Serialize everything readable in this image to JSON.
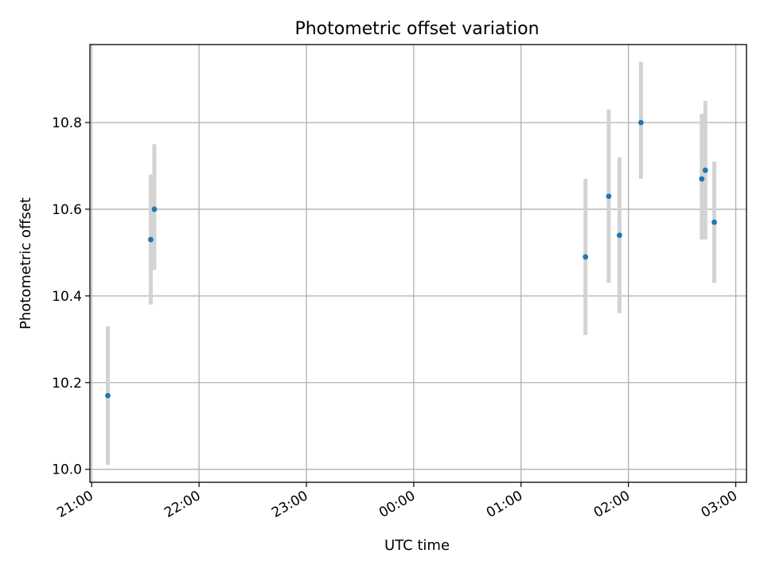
{
  "chart_data": {
    "type": "scatter",
    "title": "Photometric offset variation",
    "xlabel": "UTC time",
    "ylabel": "Photometric offset",
    "x_axis_kind": "time",
    "xlim": [
      "20:59",
      "03:06"
    ],
    "ylim": [
      9.97,
      10.98
    ],
    "grid": true,
    "x_ticks": [
      "21:00",
      "22:00",
      "23:00",
      "00:00",
      "01:00",
      "02:00",
      "03:00"
    ],
    "y_ticks": [
      "10.0",
      "10.2",
      "10.4",
      "10.6",
      "10.8"
    ],
    "series": [
      {
        "style": "points-with-error-bars",
        "color": "#1f77b4",
        "error_color": "#d3d3d3",
        "points": [
          {
            "x": "21:09",
            "y": 10.17,
            "y_low": 10.01,
            "y_high": 10.33
          },
          {
            "x": "21:33",
            "y": 10.53,
            "y_low": 10.38,
            "y_high": 10.68
          },
          {
            "x": "21:35",
            "y": 10.6,
            "y_low": 10.46,
            "y_high": 10.75
          },
          {
            "x": "01:36",
            "y": 10.49,
            "y_low": 10.31,
            "y_high": 10.67
          },
          {
            "x": "01:49",
            "y": 10.63,
            "y_low": 10.43,
            "y_high": 10.83
          },
          {
            "x": "01:55",
            "y": 10.54,
            "y_low": 10.36,
            "y_high": 10.72
          },
          {
            "x": "02:07",
            "y": 10.8,
            "y_low": 10.67,
            "y_high": 10.94
          },
          {
            "x": "02:41",
            "y": 10.67,
            "y_low": 10.53,
            "y_high": 10.82
          },
          {
            "x": "02:43",
            "y": 10.69,
            "y_low": 10.53,
            "y_high": 10.85
          },
          {
            "x": "02:48",
            "y": 10.57,
            "y_low": 10.43,
            "y_high": 10.71
          }
        ]
      }
    ]
  }
}
